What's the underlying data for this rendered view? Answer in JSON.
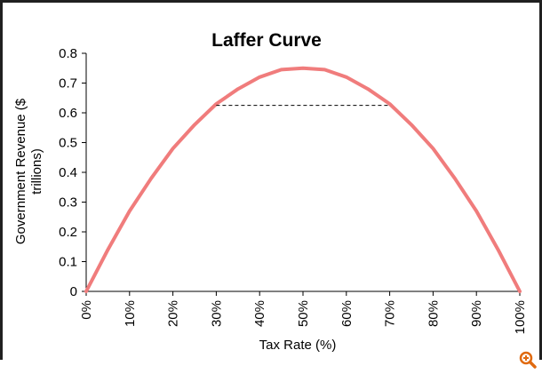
{
  "chart_data": {
    "type": "line",
    "title": "Laffer Curve",
    "xlabel": "Tax Rate (%)",
    "ylabel_line1": "Government Revenue ($",
    "ylabel_line2": "trillions)",
    "x_ticks": [
      "0%",
      "10%",
      "20%",
      "30%",
      "40%",
      "50%",
      "60%",
      "70%",
      "80%",
      "90%",
      "100%"
    ],
    "y_ticks": [
      "0",
      "0.1",
      "0.2",
      "0.3",
      "0.4",
      "0.5",
      "0.6",
      "0.7",
      "0.8"
    ],
    "xlim": [
      0,
      100
    ],
    "ylim": [
      0,
      0.8
    ],
    "series": [
      {
        "color": "#f07c7c",
        "x": [
          0,
          5,
          10,
          15,
          20,
          25,
          30,
          35,
          40,
          45,
          50,
          55,
          60,
          65,
          70,
          75,
          80,
          85,
          90,
          95,
          100
        ],
        "y": [
          0,
          0.14,
          0.27,
          0.38,
          0.48,
          0.56,
          0.63,
          0.68,
          0.72,
          0.745,
          0.75,
          0.745,
          0.72,
          0.68,
          0.63,
          0.56,
          0.48,
          0.38,
          0.27,
          0.14,
          0
        ]
      }
    ],
    "reference_line": {
      "y": 0.625,
      "x_from": 30,
      "x_to": 70,
      "style": "dashed"
    },
    "grid": false,
    "legend": "none"
  },
  "icons": {
    "corner": "zoom-icon"
  }
}
